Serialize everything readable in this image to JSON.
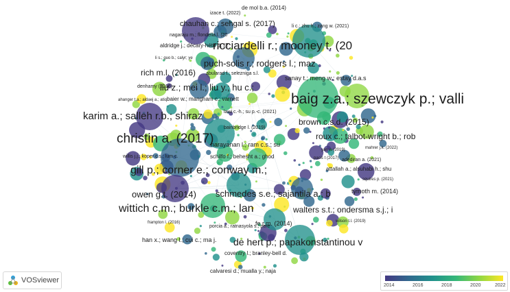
{
  "app": {
    "logo_text": "VOSviewer"
  },
  "colors": {
    "scale": [
      "#443983",
      "#31688e",
      "#21918c",
      "#35b779",
      "#90d743",
      "#fde725"
    ],
    "background": "#ffffff"
  },
  "legend": {
    "ticks": [
      "2014",
      "2016",
      "2018",
      "2020",
      "2022"
    ]
  },
  "labels": [
    "de mol b.a. (2014)",
    "izace t. (2022)",
    "chauhan c.; sehgal s. (2017)",
    "li c.; zhu h.; zang w. (2021)",
    "nagaraju m.; flondella l. (20",
    "aldridge j.; décary-hétu d. (2",
    "ricciardelli r.; mooney t. (20",
    "li s.; guo b.; calyr; ye",
    "puch-solis r.; rodgers l.; maz",
    "rich m.l. (2016)",
    "abularad f.; selezniga s.l.",
    "sanay t.; meng w.; estay d.a.s",
    "denhamy (2016)",
    "liu z.; mei l.; liu y.; hu c.;",
    "ahanger t.a.; aldaej a.; atiq",
    "baig z.a.; szewczyk p.; valli",
    "baier w.; mangham c.; varnett",
    "karim a.; salleh r.b.; shiraz",
    "lawi c.-h.; su p.-c. (2021)",
    "brown c.s.d. (2015)",
    "christin a. (2017)",
    "bainbridge l. (2019)",
    "roux c.; talbot-wright b.; rob",
    "narayanan l.; ram c.s.; su",
    "mahrer j.k. (2022)",
    "willis j.j.; koper c.s.; lum c.",
    "schilfo f.; behesht a.; ghod",
    "yan w (2019)",
    "pacis t (2017)",
    "adediran a. (2021)",
    "gill p.; corner e.; conway m.;",
    "attallah a.; alsuhabi h.; shu",
    "squires p. (2021)",
    "tymoth m. (2014)",
    "owen g.t. (2014)",
    "schmedes s.e.; sajantila a.; b",
    "wittich c.m.; burkle c.m.; lan",
    "walters s.t.; ondersma s.j.; i",
    "frampton l. (2016)",
    "wilson t.l. (2019)",
    "porcia a.; ratnasyola s.; pere",
    "fe r.m. (2014)",
    "han x.; wang l.; cui c.; ma j.",
    "de hert p.; papakonstantinou v",
    "coventry l.; branley-bell d.",
    "calvaresi d.; mualla y.; naja"
  ]
}
